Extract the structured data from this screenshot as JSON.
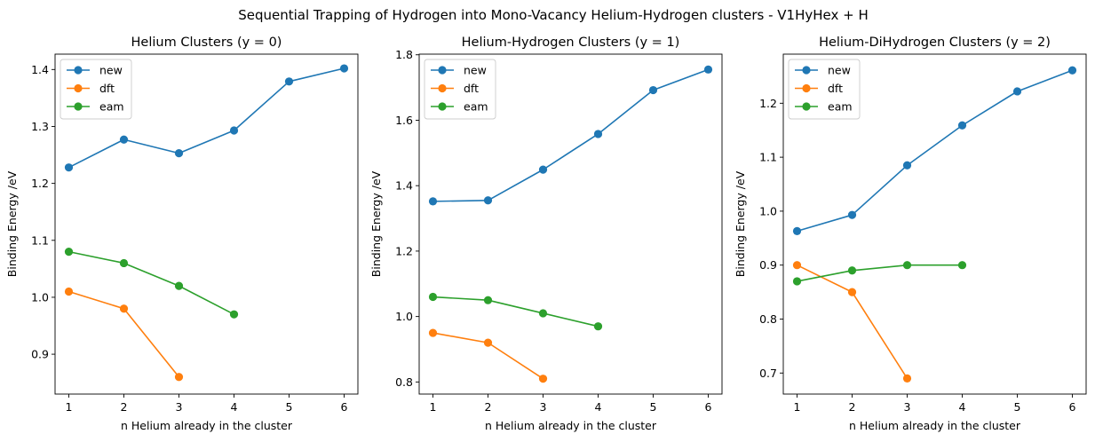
{
  "figure": {
    "title": "Sequential Trapping of Hydrogen into Mono-Vacancy Helium-Hydrogen clusters - V1HyHex + H"
  },
  "colors": {
    "new": "#1f77b4",
    "dft": "#ff7f0e",
    "eam": "#2ca02c"
  },
  "chart_data": [
    {
      "type": "line",
      "title": "Helium Clusters (y = 0)",
      "xlabel": "n Helium already in the cluster",
      "ylabel": "Binding Energy /eV",
      "xlim": [
        0.75,
        6.25
      ],
      "ylim": [
        0.83,
        1.427
      ],
      "xticks": [
        1,
        2,
        3,
        4,
        5,
        6
      ],
      "yticks": [
        0.9,
        1.0,
        1.1,
        1.2,
        1.3,
        1.4
      ],
      "ytick_labels": [
        "0.9",
        "1.0",
        "1.1",
        "1.2",
        "1.3",
        "1.4"
      ],
      "legend": "top-left",
      "series": [
        {
          "name": "new",
          "color": "#1f77b4",
          "x": [
            1,
            2,
            3,
            4,
            5,
            6
          ],
          "y": [
            1.228,
            1.277,
            1.253,
            1.293,
            1.379,
            1.402
          ]
        },
        {
          "name": "dft",
          "color": "#ff7f0e",
          "x": [
            1,
            2,
            3
          ],
          "y": [
            1.01,
            0.98,
            0.86
          ]
        },
        {
          "name": "eam",
          "color": "#2ca02c",
          "x": [
            1,
            2,
            3,
            4
          ],
          "y": [
            1.08,
            1.06,
            1.02,
            0.97
          ]
        }
      ]
    },
    {
      "type": "line",
      "title": "Helium-Hydrogen Clusters (y = 1)",
      "xlabel": "n Helium already in the cluster",
      "ylabel": "Binding Energy /eV",
      "xlim": [
        0.75,
        6.25
      ],
      "ylim": [
        0.763,
        1.802
      ],
      "xticks": [
        1,
        2,
        3,
        4,
        5,
        6
      ],
      "yticks": [
        0.8,
        1.0,
        1.2,
        1.4,
        1.6,
        1.8
      ],
      "ytick_labels": [
        "0.8",
        "1.0",
        "1.2",
        "1.4",
        "1.6",
        "1.8"
      ],
      "legend": "top-left",
      "series": [
        {
          "name": "new",
          "color": "#1f77b4",
          "x": [
            1,
            2,
            3,
            4,
            5,
            6
          ],
          "y": [
            1.352,
            1.355,
            1.449,
            1.558,
            1.692,
            1.755
          ]
        },
        {
          "name": "dft",
          "color": "#ff7f0e",
          "x": [
            1,
            2,
            3
          ],
          "y": [
            0.95,
            0.92,
            0.81
          ]
        },
        {
          "name": "eam",
          "color": "#2ca02c",
          "x": [
            1,
            2,
            3,
            4
          ],
          "y": [
            1.06,
            1.05,
            1.01,
            0.97
          ]
        }
      ]
    },
    {
      "type": "line",
      "title": "Helium-DiHydrogen Clusters (y = 2)",
      "xlabel": "n Helium already in the cluster",
      "ylabel": "Binding Energy /eV",
      "xlim": [
        0.75,
        6.25
      ],
      "ylim": [
        0.661,
        1.291
      ],
      "xticks": [
        1,
        2,
        3,
        4,
        5,
        6
      ],
      "yticks": [
        0.7,
        0.8,
        0.9,
        1.0,
        1.1,
        1.2
      ],
      "ytick_labels": [
        "0.7",
        "0.8",
        "0.9",
        "1.0",
        "1.1",
        "1.2"
      ],
      "legend": "top-left",
      "series": [
        {
          "name": "new",
          "color": "#1f77b4",
          "x": [
            1,
            2,
            3,
            4,
            5,
            6
          ],
          "y": [
            0.963,
            0.993,
            1.085,
            1.159,
            1.222,
            1.261
          ]
        },
        {
          "name": "dft",
          "color": "#ff7f0e",
          "x": [
            1,
            2,
            3
          ],
          "y": [
            0.9,
            0.85,
            0.69
          ]
        },
        {
          "name": "eam",
          "color": "#2ca02c",
          "x": [
            1,
            2,
            3,
            4
          ],
          "y": [
            0.87,
            0.89,
            0.9,
            0.9
          ]
        }
      ]
    }
  ]
}
